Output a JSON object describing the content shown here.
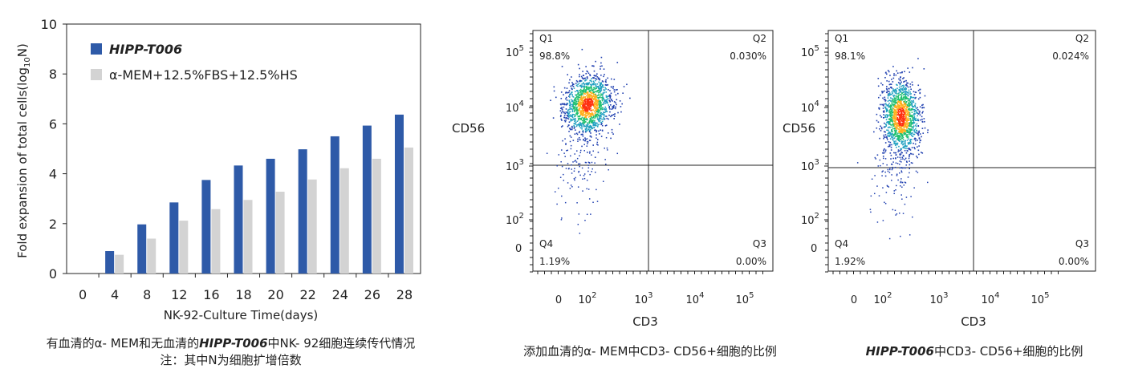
{
  "colors": {
    "series1": "#2e5aa8",
    "series2": "#d3d3d3",
    "axis": "#222222",
    "density_low": "#2040b0",
    "density_mid": "#20c070",
    "density_high": "#ff3010"
  },
  "chart_data": [
    {
      "type": "bar",
      "ylabel_main": "Fold expansion of total cells(log",
      "ylabel_sub": "10",
      "ylabel_end": "N)",
      "xlabel": "NK-92-Culture Time(days)",
      "categories": [
        "0",
        "4",
        "8",
        "12",
        "16",
        "18",
        "20",
        "22",
        "24",
        "26",
        "28"
      ],
      "ylim": [
        0,
        10
      ],
      "yticks": [
        "0",
        "2",
        "4",
        "6",
        "8",
        "10"
      ],
      "legend_position": "top-left",
      "series": [
        {
          "name": "HIPP-T006",
          "values": [
            0,
            0.9,
            1.97,
            2.85,
            3.75,
            4.33,
            4.6,
            4.98,
            5.5,
            5.93,
            6.37
          ]
        },
        {
          "name": "α-MEM+12.5%FBS+12.5%HS",
          "values": [
            0,
            0.75,
            1.4,
            2.12,
            2.58,
            2.95,
            3.28,
            3.77,
            4.22,
            4.6,
            5.05
          ]
        }
      ]
    },
    {
      "type": "scatter",
      "xlabel": "CD3",
      "ylabel": "CD56",
      "scale": "biexponential",
      "quadrants": [
        {
          "name": "Q1",
          "percent": "98.8%"
        },
        {
          "name": "Q2",
          "percent": "0.030%"
        },
        {
          "name": "Q3",
          "percent": "0.00%"
        },
        {
          "name": "Q4",
          "percent": "1.19%"
        }
      ]
    },
    {
      "type": "scatter",
      "xlabel": "CD3",
      "ylabel": "CD56",
      "scale": "biexponential",
      "quadrants": [
        {
          "name": "Q1",
          "percent": "98.1%"
        },
        {
          "name": "Q2",
          "percent": "0.024%"
        },
        {
          "name": "Q3",
          "percent": "0.00%"
        },
        {
          "name": "Q4",
          "percent": "1.92%"
        }
      ]
    }
  ],
  "captions": {
    "chart1_line1_pre": "有血清的α- MEM和无血清的",
    "chart1_line1_em": "HIPP-T006",
    "chart1_line1_post": "中NK- 92细胞连续传代情况",
    "chart1_line2": "注：其中N为细胞扩增倍数",
    "chart2": "添加血清的α- MEM中CD3- CD56+细胞的比例",
    "chart3_em": "HIPP-T006",
    "chart3_post": "中CD3- CD56+细胞的比例"
  }
}
